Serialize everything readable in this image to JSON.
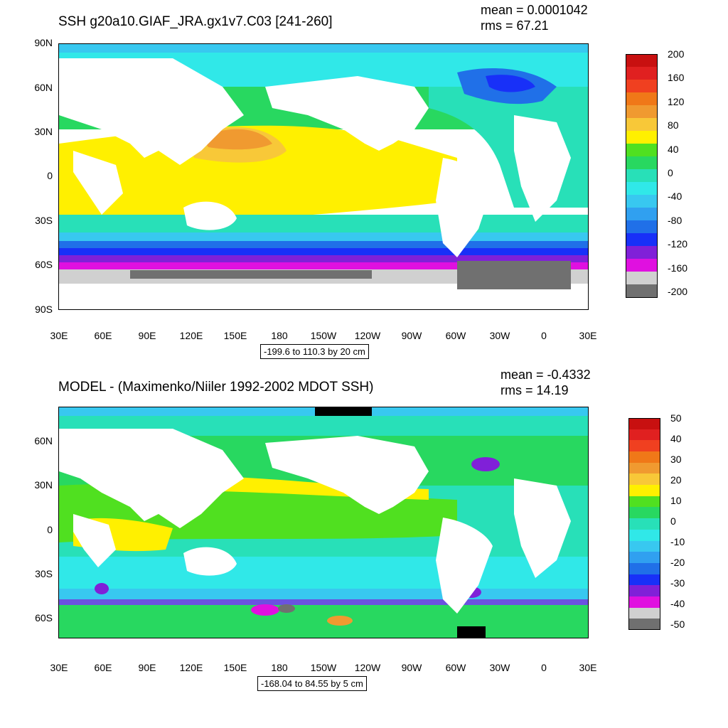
{
  "chart_data": [
    {
      "type": "heatmap",
      "title": "SSH g20a10.GIAF_JRA.gx1v7.C03 [241-260]",
      "stats": {
        "mean": "mean = 0.0001042",
        "rms": "rms = 67.21"
      },
      "contour_info": "-199.6 to 110.3 by 20 cm",
      "y_ticks": [
        "90N",
        "60N",
        "30N",
        "0",
        "30S",
        "60S",
        "90S"
      ],
      "x_ticks": [
        "30E",
        "60E",
        "90E",
        "120E",
        "150E",
        "180",
        "150W",
        "120W",
        "90W",
        "60W",
        "30W",
        "0",
        "30E"
      ],
      "colorbar": {
        "labels": [
          "200",
          "160",
          "120",
          "80",
          "40",
          "0",
          "-40",
          "-80",
          "-120",
          "-160",
          "-200"
        ],
        "colors": [
          "#c81010",
          "#e02020",
          "#f04020",
          "#f07818",
          "#f09a30",
          "#f8c838",
          "#fff000",
          "#50e020",
          "#28d860",
          "#28e0b8",
          "#30e8e8",
          "#38c8f0",
          "#30a0f0",
          "#2070e8",
          "#1830f8",
          "#8020d8",
          "#e010e0",
          "#d0d0d0",
          "#707070"
        ]
      }
    },
    {
      "type": "heatmap",
      "title": "MODEL - (Maximenko/Niiler 1992-2002 MDOT SSH)",
      "stats": {
        "mean": "mean = -0.4332",
        "rms": "rms = 14.19"
      },
      "contour_info": "-168.04 to 84.55 by 5 cm",
      "y_ticks": [
        "60N",
        "30N",
        "0",
        "30S",
        "60S"
      ],
      "x_ticks": [
        "30E",
        "60E",
        "90E",
        "120E",
        "150E",
        "180",
        "150W",
        "120W",
        "90W",
        "60W",
        "30W",
        "0",
        "30E"
      ],
      "colorbar": {
        "labels": [
          "50",
          "40",
          "30",
          "20",
          "10",
          "0",
          "-10",
          "-20",
          "-30",
          "-40",
          "-50"
        ],
        "colors": [
          "#c81010",
          "#e02020",
          "#f04020",
          "#f07818",
          "#f09a30",
          "#f8c838",
          "#fff000",
          "#50e020",
          "#28d860",
          "#28e0b8",
          "#30e8e8",
          "#38c8f0",
          "#30a0f0",
          "#2070e8",
          "#1830f8",
          "#8020d8",
          "#e010e0",
          "#d0d0d0",
          "#707070"
        ]
      }
    }
  ]
}
